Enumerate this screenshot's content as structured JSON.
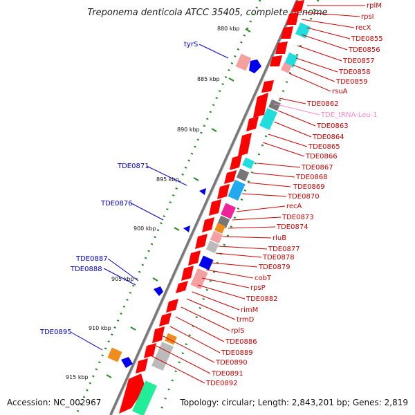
{
  "header": {
    "title": "Treponema denticola ATCC 35405, complete genome"
  },
  "footer": {
    "accession": "Accession: NC_002967",
    "summary": "Topology: circular; Length: 2,843,201 bp; Genes: 2,819"
  },
  "colors": {
    "plus_gene_label": "#0000cc",
    "minus_gene_label": "#cc0000",
    "trna_label": "#ff88cc",
    "backbone": "#777777",
    "tick_dots": "#228822",
    "gene_red": "#ff0000",
    "gene_blue": "#0000ff"
  },
  "ticks": [
    "880 kbp",
    "885 kbp",
    "890 kbp",
    "895 kbp",
    "900 kbp",
    "905 kbp",
    "910 kbp",
    "915 kbp"
  ],
  "plus_strand_labels": [
    "tyrS",
    "TDE0871",
    "TDE0876",
    "TDE0887",
    "TDE0888",
    "TDE0895"
  ],
  "minus_strand_labels": [
    "rplM",
    "rpsI",
    "recX",
    "TDE0855",
    "TDE0856",
    "TDE0857",
    "TDE0858",
    "TDE0859",
    "rsuA",
    "TDE0862",
    "TDE_tRNA-Leu-1",
    "TDE0863",
    "TDE0864",
    "TDE0865",
    "TDE0866",
    "TDE0867",
    "TDE0868",
    "TDE0869",
    "TDE0870",
    "recA",
    "TDE0873",
    "TDE0874",
    "rluB",
    "TDE0877",
    "TDE0878",
    "TDE0879",
    "cobT",
    "rpsP",
    "TDE0882",
    "rimM",
    "trmD",
    "rplS",
    "TDE0886",
    "TDE0889",
    "TDE0890",
    "TDE0891",
    "TDE0892"
  ]
}
